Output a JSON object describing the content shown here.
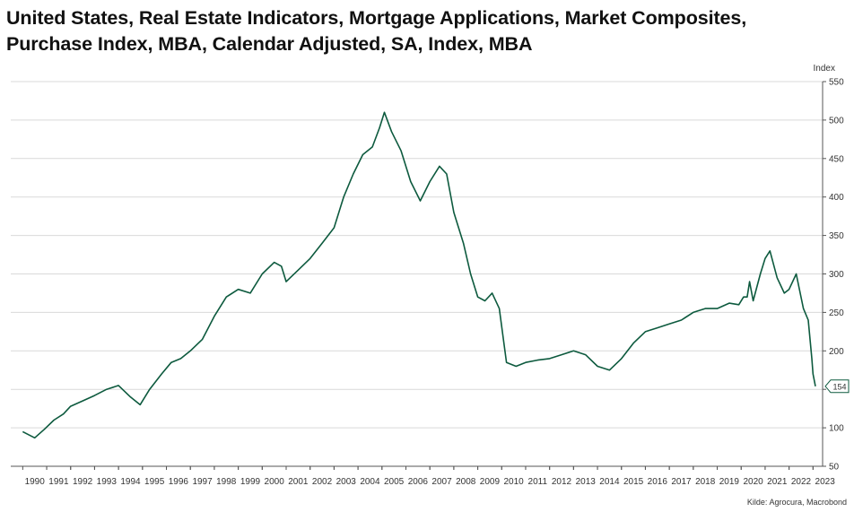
{
  "title": {
    "line1": "United States, Real Estate Indicators, Mortgage Applications, Market Composites,",
    "line2": "Purchase Index, MBA, Calendar Adjusted, SA, Index, MBA"
  },
  "source": "Kilde: Agrocura, Macrobond",
  "colors": {
    "line": "#0d5a3e",
    "grid": "#d9d9d9",
    "axis": "#555555",
    "text": "#333333"
  },
  "chart_data": {
    "type": "line",
    "title": "United States, Real Estate Indicators, Mortgage Applications, Market Composites, Purchase Index, MBA, Calendar Adjusted, SA, Index, MBA",
    "ylabel": "Index",
    "xlabel": "",
    "xlim": [
      1989.5,
      2023.4
    ],
    "ylim": [
      50,
      550
    ],
    "y_ticks": [
      50,
      100,
      150,
      200,
      250,
      300,
      350,
      400,
      450,
      500,
      550
    ],
    "x_ticks": [
      "1990",
      "1991",
      "1992",
      "1993",
      "1994",
      "1995",
      "1996",
      "1997",
      "1998",
      "1999",
      "2000",
      "2001",
      "2002",
      "2003",
      "2004",
      "2005",
      "2006",
      "2007",
      "2008",
      "2009",
      "2010",
      "2011",
      "2012",
      "2013",
      "2014",
      "2015",
      "2016",
      "2017",
      "2018",
      "2019",
      "2020",
      "2021",
      "2022",
      "2023"
    ],
    "grid": true,
    "y_axis_position": "right",
    "last_value_label": "154",
    "series": [
      {
        "x": [
          1990.0,
          1990.5,
          1990.9,
          1991.3,
          1991.7,
          1992.0,
          1992.5,
          1993.0,
          1993.5,
          1994.0,
          1994.5,
          1994.9,
          1995.3,
          1995.8,
          1996.2,
          1996.6,
          1997.0,
          1997.5,
          1998.0,
          1998.5,
          1999.0,
          1999.5,
          2000.0,
          2000.5,
          2000.8,
          2001.0,
          2001.5,
          2002.0,
          2002.5,
          2003.0,
          2003.4,
          2003.8,
          2004.2,
          2004.6,
          2004.9,
          2005.1,
          2005.4,
          2005.8,
          2006.2,
          2006.6,
          2007.0,
          2007.4,
          2007.7,
          2008.0,
          2008.4,
          2008.7,
          2009.0,
          2009.3,
          2009.6,
          2009.9,
          2010.2,
          2010.6,
          2011.0,
          2011.5,
          2012.0,
          2012.5,
          2013.0,
          2013.5,
          2014.0,
          2014.5,
          2015.0,
          2015.5,
          2016.0,
          2016.5,
          2017.0,
          2017.5,
          2018.0,
          2018.5,
          2019.0,
          2019.5,
          2019.9,
          2020.1,
          2020.25,
          2020.35,
          2020.5,
          2020.8,
          2021.0,
          2021.2,
          2021.5,
          2021.8,
          2022.0,
          2022.3,
          2022.6,
          2022.8,
          2022.95,
          2023.0,
          2023.1
        ],
        "values": [
          95,
          87,
          98,
          110,
          118,
          128,
          135,
          142,
          150,
          155,
          140,
          130,
          150,
          170,
          185,
          190,
          200,
          215,
          245,
          270,
          280,
          275,
          300,
          315,
          310,
          290,
          305,
          320,
          340,
          360,
          400,
          430,
          455,
          465,
          490,
          510,
          485,
          460,
          420,
          395,
          420,
          440,
          430,
          380,
          340,
          300,
          270,
          265,
          275,
          255,
          185,
          180,
          185,
          188,
          190,
          195,
          200,
          195,
          180,
          175,
          190,
          210,
          225,
          230,
          235,
          240,
          250,
          255,
          255,
          262,
          260,
          270,
          270,
          290,
          265,
          300,
          320,
          330,
          295,
          275,
          280,
          300,
          255,
          240,
          190,
          170,
          154
        ]
      }
    ]
  }
}
